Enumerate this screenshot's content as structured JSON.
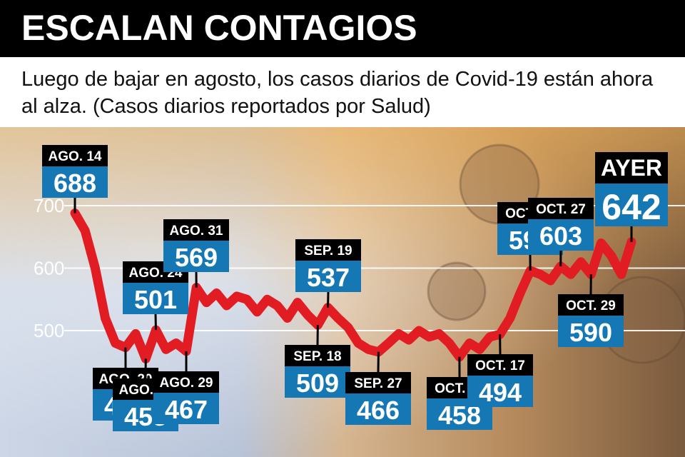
{
  "title": "ESCALAN CONTAGIOS",
  "subtitle": "Luego de bajar en agosto, los casos diarios de Covid-19 están ahora al alza. (Casos diarios reportados por Salud)",
  "colors": {
    "line": "#e21c23",
    "label_bg": "#1578b4",
    "date_bg": "#000000",
    "grid": "#ffffff"
  },
  "chart_data": {
    "type": "line",
    "title": "ESCALAN CONTAGIOS",
    "xlabel": "",
    "ylabel": "",
    "ylim": [
      430,
      720
    ],
    "yticks": [
      500,
      600,
      700
    ],
    "grid": true,
    "series": [
      {
        "values": [
          688,
          660,
          600,
          520,
          480,
          473,
          495,
          455,
          501,
          470,
          480,
          467,
          569,
          545,
          560,
          540,
          555,
          550,
          530,
          550,
          540,
          520,
          545,
          525,
          509,
          537,
          520,
          505,
          480,
          470,
          466,
          480,
          495,
          485,
          500,
          490,
          495,
          480,
          458,
          480,
          470,
          490,
          494,
          520,
          560,
          596,
          590,
          580,
          603,
          590,
          610,
          590,
          640,
          620,
          590,
          642
        ]
      }
    ],
    "annotations": [
      {
        "date": "AGO. 14",
        "value": 688,
        "index": 0,
        "placement": "above"
      },
      {
        "date": "AGO. 20",
        "value": 473,
        "index": 5,
        "placement": "below"
      },
      {
        "date": "AGO. 23",
        "value": 455,
        "index": 7,
        "placement": "below"
      },
      {
        "date": "AGO. 24",
        "value": 501,
        "index": 8,
        "placement": "above"
      },
      {
        "date": "AGO. 29",
        "value": 467,
        "index": 11,
        "placement": "below"
      },
      {
        "date": "AGO. 31",
        "value": 569,
        "index": 12,
        "placement": "above"
      },
      {
        "date": "SEP. 18",
        "value": 509,
        "index": 24,
        "placement": "below"
      },
      {
        "date": "SEP. 19",
        "value": 537,
        "index": 25,
        "placement": "above"
      },
      {
        "date": "SEP. 27",
        "value": 466,
        "index": 30,
        "placement": "below"
      },
      {
        "date": "OCT. 10",
        "value": 458,
        "index": 38,
        "placement": "below"
      },
      {
        "date": "OCT. 17",
        "value": 494,
        "index": 42,
        "placement": "below"
      },
      {
        "date": "OCT. 22",
        "value": 596,
        "index": 45,
        "placement": "above"
      },
      {
        "date": "OCT. 27",
        "value": 603,
        "index": 48,
        "placement": "above"
      },
      {
        "date": "OCT. 29",
        "value": 590,
        "index": 51,
        "placement": "below"
      },
      {
        "date": "AYER",
        "value": 642,
        "index": 55,
        "placement": "above"
      }
    ]
  }
}
